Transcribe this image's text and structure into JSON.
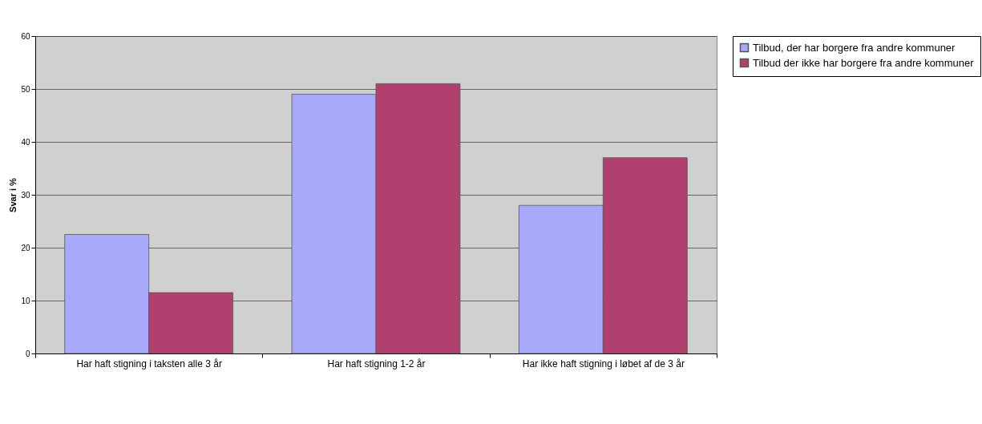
{
  "chart_data": {
    "type": "bar",
    "ylabel": "Svar i %",
    "categories": [
      "Har haft stigning i taksten alle 3 år",
      "Har haft stigning 1-2 år",
      "Har ikke haft stigning i løbet af de 3 år"
    ],
    "series": [
      {
        "name": "Tilbud, der har borgere fra andre kommuner",
        "color": "#a9a9fb",
        "values": [
          22.5,
          49,
          28
        ]
      },
      {
        "name": "Tilbud der ikke har borgere fra andre kommuner",
        "color": "#b0416e",
        "values": [
          11.5,
          51,
          37
        ]
      }
    ],
    "ylim": [
      0,
      60
    ],
    "yticks": [
      0,
      10,
      20,
      30,
      40,
      50,
      60
    ],
    "grid": "y",
    "legend": "top right"
  }
}
